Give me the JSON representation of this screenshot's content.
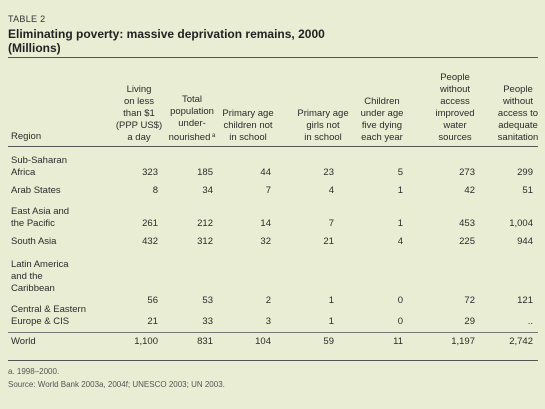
{
  "table_label": "TABLE 2",
  "title": "Eliminating poverty: massive deprivation remains, 2000",
  "subtitle": "(Millions)",
  "region_header": "Region",
  "columns": [
    {
      "label": "Living\non less\nthan $1\n(PPP US$)\na day"
    },
    {
      "label": "Total\npopulation\nunder-\nnourished",
      "sup": "a"
    },
    {
      "label": "Primary age\nchildren not\nin school"
    },
    {
      "label": "Primary age\ngirls not\nin school"
    },
    {
      "label": "Children\nunder age\nfive dying\neach year"
    },
    {
      "label": "People\nwithout\naccess\nimproved\nwater\nsources"
    },
    {
      "label": "People\nwithout\naccess to\nadequate\nsanitation"
    }
  ],
  "rows": [
    {
      "region": "Sub-Saharan\n   Africa",
      "values": [
        "323",
        "185",
        "44",
        "23",
        "5",
        "273",
        "299"
      ]
    },
    {
      "region": "Arab States",
      "values": [
        "8",
        "34",
        "7",
        "4",
        "1",
        "42",
        "51"
      ]
    },
    {
      "region": "East Asia and\n   the Pacific",
      "values": [
        "261",
        "212",
        "14",
        "7",
        "1",
        "453",
        "1,004"
      ]
    },
    {
      "region": "South Asia",
      "values": [
        "432",
        "312",
        "32",
        "21",
        "4",
        "225",
        "944"
      ]
    },
    {
      "region": "Latin America\n   and the\n   Caribbean",
      "values": [
        "56",
        "53",
        "2",
        "1",
        "0",
        "72",
        "121"
      ]
    },
    {
      "region": "Central & Eastern\n   Europe & CIS",
      "values": [
        "21",
        "33",
        "3",
        "1",
        "0",
        "29",
        ".."
      ]
    },
    {
      "region": "World",
      "values": [
        "1,100",
        "831",
        "104",
        "59",
        "11",
        "1,197",
        "2,742"
      ]
    }
  ],
  "footnote": "a. 1998–2000.",
  "source": "Source: World Bank 2003a, 2004f; UNESCO 2003; UN 2003."
}
